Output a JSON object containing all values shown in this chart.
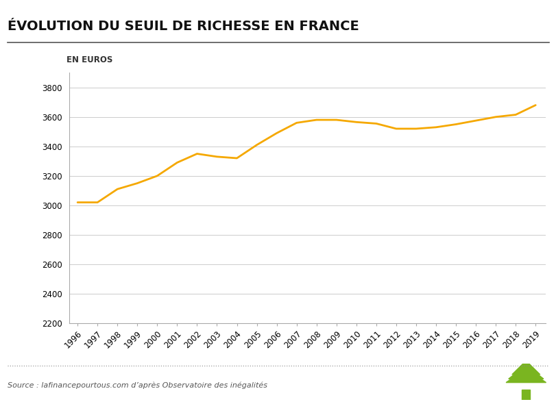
{
  "title": "ÉVOLUTION DU SEUIL DE RICHESSE EN FRANCE",
  "ylabel": "EN EUROS",
  "source": "Source : lafinancepourtous.com d’après Observatoire des inégalités",
  "years": [
    1996,
    1997,
    1998,
    1999,
    2000,
    2001,
    2002,
    2003,
    2004,
    2005,
    2006,
    2007,
    2008,
    2009,
    2010,
    2011,
    2012,
    2013,
    2014,
    2015,
    2016,
    2017,
    2018,
    2019
  ],
  "values": [
    3020,
    3020,
    3110,
    3150,
    3200,
    3290,
    3350,
    3330,
    3320,
    3410,
    3490,
    3560,
    3580,
    3580,
    3565,
    3555,
    3520,
    3520,
    3530,
    3550,
    3575,
    3600,
    3615,
    3680
  ],
  "line_color": "#F5A800",
  "background_color": "#ffffff",
  "ylim": [
    2200,
    3900
  ],
  "yticks": [
    2200,
    2400,
    2600,
    2800,
    3000,
    3200,
    3400,
    3600,
    3800
  ],
  "grid_color": "#cccccc",
  "title_fontsize": 14,
  "ylabel_fontsize": 8.5,
  "tick_fontsize": 8.5,
  "source_fontsize": 8,
  "line_width": 2.0,
  "tree_color": "#7ab520"
}
